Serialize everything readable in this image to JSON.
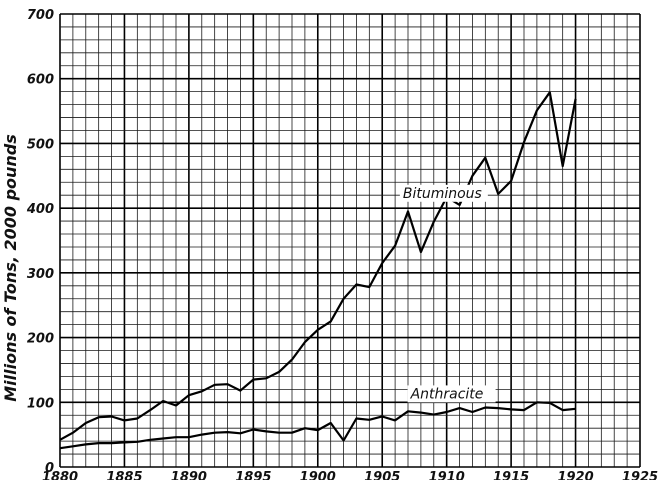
{
  "chart_data": {
    "type": "line",
    "title": "",
    "ylabel": "Millions of Tons, 2000 pounds",
    "xlabel": "",
    "xlim": [
      1880,
      1925
    ],
    "ylim": [
      0,
      700
    ],
    "x_ticks": [
      1880,
      1885,
      1890,
      1895,
      1900,
      1905,
      1910,
      1915,
      1920,
      1925
    ],
    "y_ticks": [
      0,
      100,
      200,
      300,
      400,
      500,
      600,
      700
    ],
    "grid": true,
    "series": [
      {
        "name": "Bituminous",
        "x": [
          1880,
          1881,
          1882,
          1883,
          1884,
          1885,
          1886,
          1887,
          1888,
          1889,
          1890,
          1891,
          1892,
          1893,
          1894,
          1895,
          1896,
          1897,
          1898,
          1899,
          1900,
          1901,
          1902,
          1903,
          1904,
          1905,
          1906,
          1907,
          1908,
          1909,
          1910,
          1911,
          1912,
          1913,
          1914,
          1915,
          1916,
          1917,
          1918,
          1919,
          1920
        ],
        "values": [
          42,
          53,
          68,
          77,
          78,
          72,
          75,
          88,
          102,
          95,
          111,
          117,
          127,
          128,
          118,
          135,
          137,
          147,
          166,
          193,
          212,
          225,
          260,
          282,
          278,
          315,
          342,
          395,
          332,
          379,
          417,
          405,
          450,
          478,
          422,
          442,
          502,
          551,
          579,
          465,
          569
        ]
      },
      {
        "name": "Anthracite",
        "x": [
          1880,
          1881,
          1882,
          1883,
          1884,
          1885,
          1886,
          1887,
          1888,
          1889,
          1890,
          1891,
          1892,
          1893,
          1894,
          1895,
          1896,
          1897,
          1898,
          1899,
          1900,
          1901,
          1902,
          1903,
          1904,
          1905,
          1906,
          1907,
          1908,
          1909,
          1910,
          1911,
          1912,
          1913,
          1914,
          1915,
          1916,
          1917,
          1918,
          1919,
          1920
        ],
        "values": [
          29,
          32,
          35,
          37,
          37,
          38,
          39,
          42,
          44,
          46,
          46,
          50,
          53,
          54,
          52,
          58,
          55,
          53,
          53,
          60,
          57,
          68,
          41,
          75,
          73,
          78,
          72,
          86,
          84,
          81,
          85,
          91,
          85,
          92,
          91,
          89,
          88,
          100,
          99,
          88,
          90
        ]
      }
    ],
    "annotations": [
      {
        "text": "Bituminous"
      },
      {
        "text": "Anthracite"
      }
    ]
  }
}
